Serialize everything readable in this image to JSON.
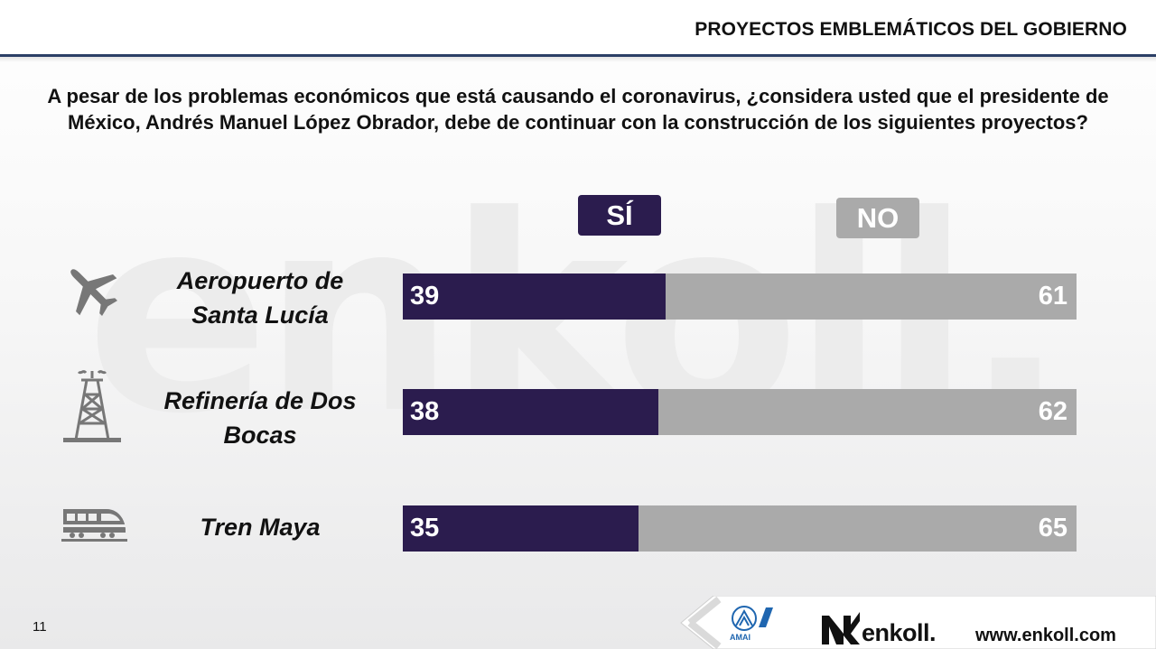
{
  "header": {
    "title": "PROYECTOS EMBLEMÁTICOS DEL GOBIERNO"
  },
  "watermark": "enkoll.",
  "question": "A pesar de los problemas económicos que está causando el coronavirus, ¿considera usted que el presidente de México, Andrés Manuel López Obrador, debe de continuar con la construcción de los siguientes proyectos?",
  "legend": {
    "si": "SÍ",
    "no": "NO"
  },
  "colors": {
    "si": "#2b1c4e",
    "no": "#aaaaaa",
    "header_line": "#2c3f66"
  },
  "rows": [
    {
      "label": "Aeropuerto de Santa Lucía",
      "icon": "airplane-icon",
      "si": "39",
      "no": "61"
    },
    {
      "label": "Refinería de Dos Bocas",
      "icon": "oil-rig-icon",
      "si": "38",
      "no": "62"
    },
    {
      "label": "Tren Maya",
      "icon": "train-icon",
      "si": "35",
      "no": "65"
    }
  ],
  "chart_data": {
    "type": "bar",
    "orientation": "horizontal",
    "stacked": true,
    "categories": [
      "Aeropuerto de Santa Lucía",
      "Refinería de Dos Bocas",
      "Tren Maya"
    ],
    "series": [
      {
        "name": "SÍ",
        "values": [
          39,
          38,
          35
        ]
      },
      {
        "name": "NO",
        "values": [
          61,
          62,
          65
        ]
      }
    ],
    "xlim": [
      0,
      100
    ],
    "legend_position": "top"
  },
  "footer": {
    "page_number": "11",
    "brand": "enkoll.",
    "url": "www.enkoll.com",
    "amai_text": "AMAI"
  }
}
